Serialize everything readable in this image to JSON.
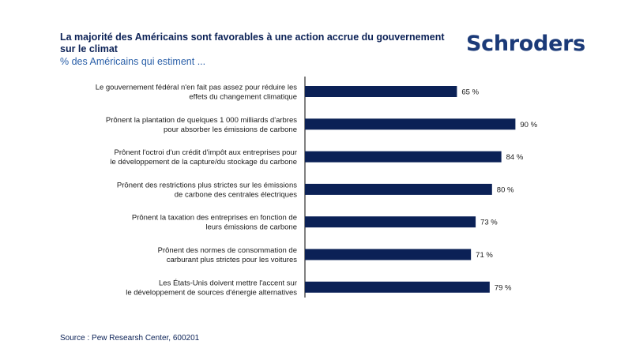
{
  "header": {
    "title": "La majorité des Américains sont favorables à une action accrue du gouvernement sur le climat",
    "subtitle": "% des Américains qui estiment ...",
    "logo_text": "Schroders"
  },
  "footer": {
    "source": "Source : Pew Researsh Center, 600201"
  },
  "colors": {
    "bar": "#0b2156",
    "axis": "#000000",
    "label_text": "#1a1a1a"
  },
  "chart_data": {
    "type": "bar",
    "orientation": "horizontal",
    "categories": [
      [
        "Le gouvernement fédéral n'en fait pas assez pour réduire les",
        "effets du changement climatique"
      ],
      [
        "Prônent la plantation de quelques 1 000 milliards d'arbres",
        "pour absorber les émissions de carbone"
      ],
      [
        "Prônent l'octroi d'un crédit d'impôt aux entreprises pour",
        "le développement de la capture/du stockage du carbone"
      ],
      [
        "Prônent des restrictions plus strictes sur les émissions",
        "de carbone des centrales électriques"
      ],
      [
        "Prônent la taxation des entreprises en fonction de",
        "leurs émissions de carbone"
      ],
      [
        "Prônent des normes de consommation de",
        "carburant plus strictes pour les voitures"
      ],
      [
        "Les États-Unis doivent mettre l'accent sur",
        "le développement de sources d'énergie alternatives"
      ]
    ],
    "values": [
      65,
      90,
      84,
      80,
      73,
      71,
      79
    ],
    "value_labels": [
      "65 %",
      "90 %",
      "84 %",
      "80 %",
      "73 %",
      "71 %",
      "79 %"
    ],
    "xlim": [
      0,
      100
    ],
    "grid": false,
    "legend": "none"
  }
}
